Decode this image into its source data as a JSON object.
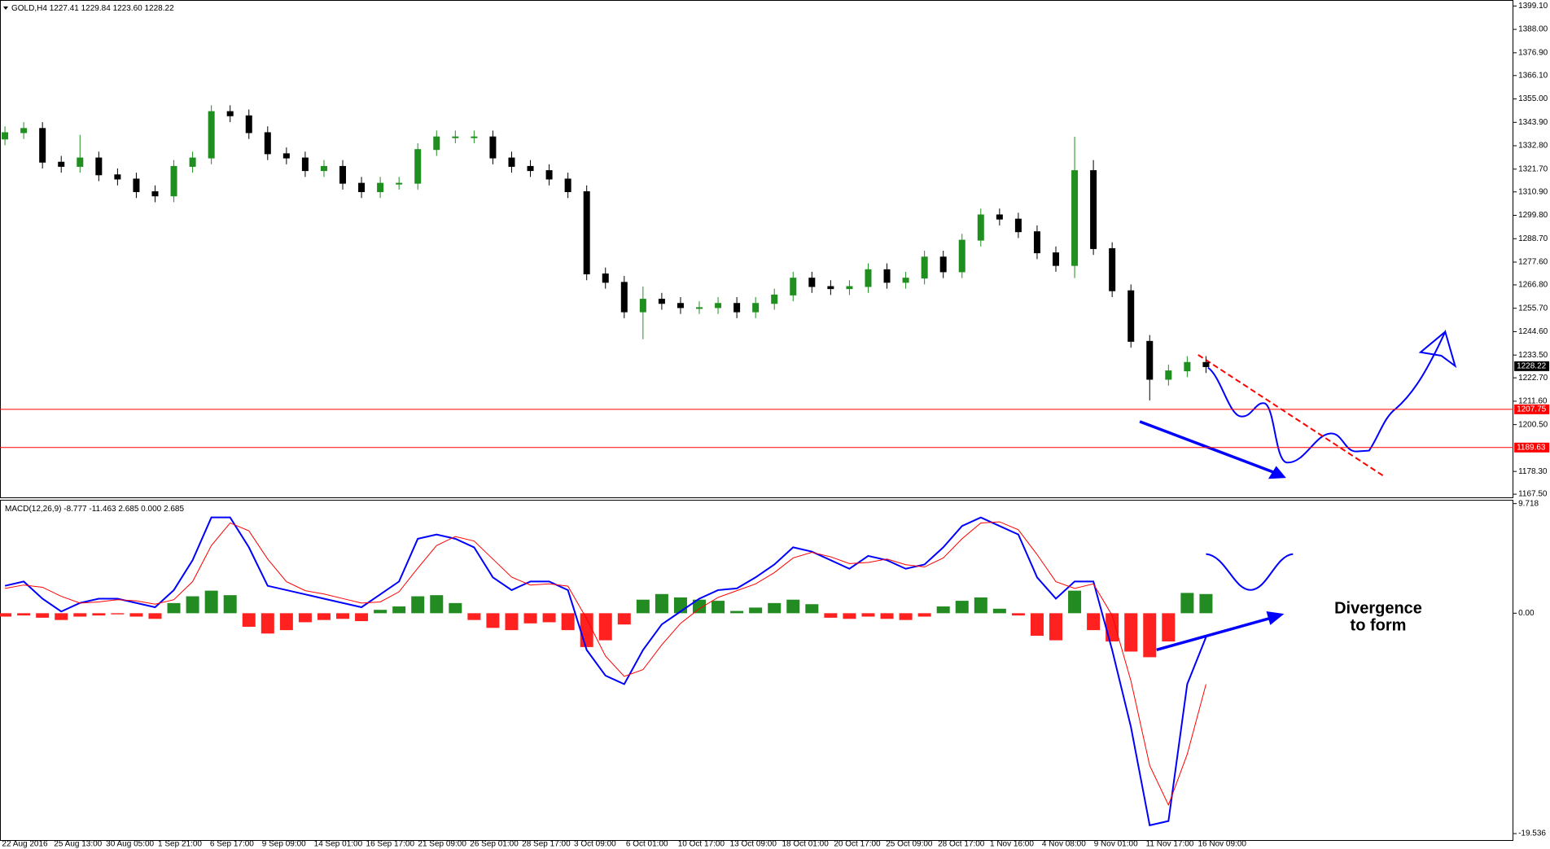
{
  "chart_data": [
    {
      "type": "candlestick",
      "title": "GOLD,H4",
      "header_values": [
        1227.41,
        1229.84,
        {
          "value": 1223.6,
          "label": "1223.60"
        },
        1228.22
      ],
      "x_tick_labels": [
        "22 Aug 2016",
        "25 Aug 13:00",
        "30 Aug 05:00",
        "1 Sep 21:00",
        "6 Sep 17:00",
        "9 Sep 09:00",
        "14 Sep 01:00",
        "16 Sep 17:00",
        "21 Sep 09:00",
        "26 Sep 01:00",
        "28 Sep 17:00",
        "3 Oct 09:00",
        "6 Oct 01:00",
        "10 Oct 17:00",
        "13 Oct 09:00",
        "18 Oct 01:00",
        "20 Oct 17:00",
        "25 Oct 09:00",
        "28 Oct 17:00",
        "1 Nov 16:00",
        "4 Nov 08:00",
        "9 Nov 01:00",
        "11 Nov 17:00",
        "16 Nov 09:00"
      ],
      "open": [
        1336,
        1339,
        1341,
        1325,
        1323,
        1327,
        1319,
        1317,
        1311,
        1309,
        1323,
        1327,
        1349,
        1347,
        1339,
        1329,
        1327,
        1321,
        1323,
        1315,
        1311,
        1315,
        1315,
        1331,
        1337,
        1337,
        1337,
        1327,
        1323,
        1321,
        1317,
        1311,
        1272,
        1268,
        1254,
        1260,
        1258,
        1256,
        1256,
        1258,
        1254,
        1258,
        1262,
        1270,
        1266,
        1265,
        1266,
        1274,
        1268,
        1270,
        1280,
        1273,
        1288,
        1300,
        1298,
        1292,
        1282,
        1276,
        1321,
        1284,
        1264,
        1240,
        1222,
        1226,
        1230
      ],
      "high": [
        1342,
        1344,
        1344,
        1328,
        1338,
        1330,
        1322,
        1320,
        1314,
        1326,
        1330,
        1352,
        1352,
        1350,
        1342,
        1332,
        1330,
        1326,
        1326,
        1318,
        1318,
        1318,
        1334,
        1340,
        1340,
        1340,
        1340,
        1330,
        1326,
        1324,
        1320,
        1314,
        1275,
        1271,
        1266,
        1263,
        1261,
        1259,
        1261,
        1261,
        1261,
        1265,
        1273,
        1273,
        1269,
        1269,
        1277,
        1277,
        1273,
        1283,
        1283,
        1291,
        1303,
        1303,
        1301,
        1295,
        1285,
        1337,
        1326,
        1287,
        1267,
        1243,
        1229,
        1233,
        1233
      ],
      "low": [
        1333,
        1336,
        1322,
        1320,
        1320,
        1316,
        1314,
        1308,
        1306,
        1306,
        1320,
        1324,
        1344,
        1336,
        1326,
        1324,
        1318,
        1318,
        1312,
        1308,
        1308,
        1312,
        1312,
        1328,
        1334,
        1334,
        1324,
        1320,
        1318,
        1314,
        1308,
        1269,
        1265,
        1251,
        1241,
        1255,
        1253,
        1253,
        1253,
        1251,
        1251,
        1255,
        1259,
        1263,
        1262,
        1262,
        1263,
        1265,
        1265,
        1267,
        1270,
        1270,
        1285,
        1295,
        1289,
        1279,
        1273,
        1270,
        1281,
        1261,
        1237,
        1212,
        1219,
        1223,
        1225
      ],
      "close": [
        1339,
        1341,
        1325,
        1323,
        1327,
        1319,
        1317,
        1311,
        1309,
        1323,
        1327,
        1349,
        1347,
        1339,
        1329,
        1327,
        1321,
        1323,
        1315,
        1311,
        1315,
        1315,
        1331,
        1337,
        1337,
        1337,
        1327,
        1323,
        1321,
        1317,
        1311,
        1272,
        1268,
        1254,
        1260,
        1258,
        1256,
        1256,
        1258,
        1254,
        1258,
        1262,
        1270,
        1266,
        1265,
        1266,
        1274,
        1268,
        1270,
        1280,
        1273,
        1288,
        1300,
        1298,
        1292,
        1282,
        1276,
        1321,
        1284,
        1264,
        1240,
        1222,
        1226,
        1230,
        1228
      ],
      "up_color": "#1f8f1f",
      "down_color": "#000000",
      "ylim": [
        1167.5,
        1399.1
      ],
      "yticks": [
        {
          "value": 1399.1,
          "label": "1399.10"
        },
        {
          "value": 1388,
          "label": "1388.00"
        },
        {
          "value": 1376.9,
          "label": "1376.90"
        },
        {
          "value": 1366.1,
          "label": "1366.10"
        },
        {
          "value": 1355,
          "label": "1355.00"
        },
        {
          "value": 1343.9,
          "label": "1343.90"
        },
        {
          "value": 1332.8,
          "label": "1332.80"
        },
        {
          "value": 1321.7,
          "label": "1321.70"
        },
        {
          "value": 1310.9,
          "label": "1310.90"
        },
        {
          "value": 1299.8,
          "label": "1299.80"
        },
        {
          "value": 1288.7,
          "label": "1288.70"
        },
        {
          "value": 1277.6,
          "label": "1277.60"
        },
        {
          "value": 1266.8,
          "label": "1266.80"
        },
        {
          "value": 1255.7,
          "label": "1255.70"
        },
        {
          "value": 1244.6,
          "label": "1244.60"
        },
        {
          "value": 1233.5,
          "label": "1233.50"
        },
        {
          "value": 1222.7,
          "label": "1222.70"
        },
        {
          "value": 1211.6,
          "label": "1211.60"
        },
        {
          "value": 1200.5,
          "label": "1200.50"
        },
        {
          "value": 1178.3,
          "label": "1178.30"
        },
        {
          "value": 1167.5,
          "label": "1167.50"
        }
      ],
      "levels": [
        1207.75,
        1189.63
      ],
      "level_color": "#ff0000",
      "last_price": 1228.22
    },
    {
      "type": "macd",
      "title": "MACD(12,26,9)",
      "header_values": [
        -8.777,
        -11.463,
        2.685,
        {
          "value": 0,
          "label": "0.000"
        },
        2.685
      ],
      "ylim": [
        -19.536,
        9.718
      ],
      "yticks": [
        9.718,
        {
          "value": 0,
          "label": "0.00"
        },
        -19.536
      ],
      "histogram": {
        "values": [
          -0.3,
          -0.2,
          -0.4,
          -0.6,
          -0.3,
          -0.2,
          -0.1,
          -0.3,
          -0.5,
          0.9,
          1.5,
          2.0,
          1.6,
          -1.2,
          -1.8,
          -1.5,
          -0.8,
          -0.6,
          -0.5,
          -0.7,
          0.3,
          0.6,
          1.5,
          1.6,
          0.9,
          -0.6,
          -1.3,
          -1.5,
          -0.9,
          -0.8,
          -1.5,
          -3.0,
          -2.4,
          -1.0,
          1.2,
          1.7,
          1.4,
          1.2,
          1.1,
          0.2,
          0.5,
          0.9,
          1.2,
          0.8,
          -0.4,
          -0.5,
          -0.3,
          -0.5,
          -0.6,
          -0.3,
          0.6,
          1.1,
          1.4,
          0.4,
          -0.2,
          -2.0,
          -2.4,
          2.0,
          -1.5,
          -2.5,
          -3.4,
          -3.9,
          -2.5,
          1.8,
          1.7
        ],
        "up_color": "#228b22",
        "down_color": "#ff2020"
      },
      "series": [
        {
          "color": "#0000ff",
          "values": [
            2.43,
            2.81,
            1.29,
            0.15,
            0.91,
            1.29,
            1.29,
            0.91,
            0.53,
            2.05,
            4.7,
            8.49,
            8.49,
            5.84,
            2.43,
            2.05,
            1.67,
            1.29,
            0.91,
            0.53,
            1.67,
            2.81,
            6.6,
            6.98,
            6.6,
            5.84,
            3.18,
            2.05,
            2.81,
            2.81,
            2.05,
            -3.26,
            -5.53,
            -6.29,
            -3.26,
            -0.99,
            0.15,
            1.29,
            2.05,
            2.2,
            3.18,
            4.32,
            5.84,
            5.46,
            4.7,
            3.94,
            5.08,
            4.7,
            3.94,
            4.32,
            5.84,
            7.73,
            8.49,
            7.73,
            6.98,
            3.18,
            1.29,
            2.81,
            2.81,
            -3.26,
            -10.08,
            -18.8,
            -18.42,
            -6.29,
            -2.12
          ]
        },
        {
          "color": "#ff0000",
          "values": [
            2.2,
            2.5,
            2.3,
            1.5,
            0.9,
            1.0,
            1.2,
            1.1,
            0.8,
            1.2,
            2.8,
            6.0,
            8.0,
            7.3,
            4.8,
            2.8,
            2.0,
            1.7,
            1.3,
            0.9,
            1.0,
            1.9,
            4.0,
            6.0,
            6.8,
            6.4,
            4.8,
            3.2,
            2.5,
            2.6,
            2.4,
            -0.5,
            -3.8,
            -5.6,
            -5.0,
            -2.8,
            -0.9,
            0.4,
            1.4,
            2.0,
            2.6,
            3.6,
            4.9,
            5.4,
            5.0,
            4.4,
            4.5,
            4.8,
            4.3,
            4.1,
            4.9,
            6.6,
            8.0,
            8.1,
            7.4,
            5.2,
            2.8,
            2.2,
            2.6,
            -0.2,
            -6.0,
            -13.5,
            -17.0,
            -12.5,
            -6.3
          ]
        }
      ],
      "annotation": [
        "Divergence",
        "to form"
      ]
    }
  ]
}
